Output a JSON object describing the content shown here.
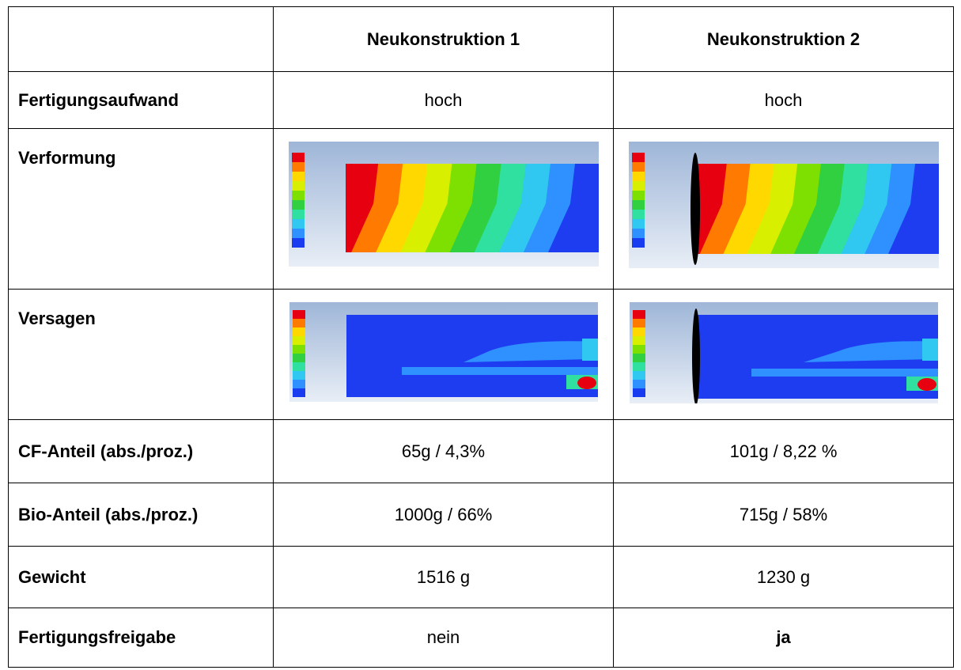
{
  "table": {
    "header": [
      "Neukonstruktion 1",
      "Neukonstruktion 2"
    ],
    "rows": [
      {
        "label": "Fertigungsaufwand",
        "cells": [
          "hoch",
          "hoch"
        ]
      },
      {
        "label": "Verformung"
      },
      {
        "label": "Versagen"
      },
      {
        "label": "CF-Anteil (abs./proz.)",
        "cells": [
          "65g / 4,3%",
          "101g / 8,22 %"
        ]
      },
      {
        "label": "Bio-Anteil (abs./proz.)",
        "cells": [
          "1000g / 66%",
          "715g / 58%"
        ]
      },
      {
        "label": "Gewicht",
        "cells": [
          "1516 g",
          "1230 g"
        ]
      },
      {
        "label": "Fertigungsfreigabe",
        "cells": [
          "nein",
          "ja"
        ]
      }
    ]
  }
}
